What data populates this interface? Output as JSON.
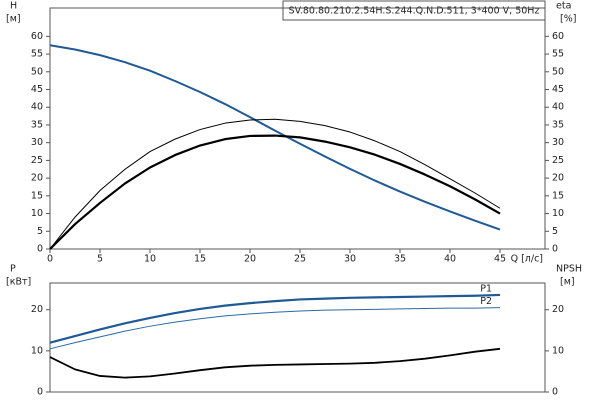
{
  "chart_data": [
    {
      "type": "line",
      "title": "SV.80.80.210.2.54H.S.244.Q.N.D.511, 3*400 V, 50Hz",
      "xlabel": "Q [л/с]",
      "ylabel": "H",
      "yunit": "[м]",
      "y2label": "eta",
      "y2unit": "[%]",
      "xlim": [
        0,
        49.5
      ],
      "xticks": [
        0,
        5,
        10,
        15,
        20,
        25,
        30,
        35,
        40,
        45
      ],
      "ylim": [
        0,
        68
      ],
      "yticks": [
        0,
        5,
        10,
        15,
        20,
        25,
        30,
        35,
        40,
        45,
        50,
        55,
        60
      ],
      "y2lim": [
        0,
        68
      ],
      "y2ticks": [
        0,
        5,
        10,
        15,
        20,
        25,
        30,
        35,
        40,
        45,
        50,
        55,
        60
      ],
      "grid": false,
      "x": [
        0,
        2.5,
        5,
        7.5,
        10,
        12.5,
        15,
        17.5,
        20,
        22.5,
        25,
        27.5,
        30,
        32.5,
        35,
        37.5,
        40,
        42.5,
        45
      ],
      "series": [
        {
          "color": "#1f5a96",
          "axis": "y",
          "values": [
            57.5,
            56.3,
            54.7,
            52.7,
            50.3,
            47.4,
            44.3,
            40.9,
            37.2,
            33.4,
            29.7,
            26.1,
            22.6,
            19.3,
            16.2,
            13.3,
            10.6,
            8,
            5.5
          ]
        },
        {
          "color": "#000000",
          "axis": "y2",
          "values": [
            0,
            9,
            16.5,
            22.5,
            27.5,
            31,
            33.7,
            35.5,
            36.4,
            36.6,
            36,
            34.8,
            33,
            30.5,
            27.5,
            23.8,
            19.8,
            15.8,
            11.5
          ]
        },
        {
          "color": "#000000",
          "axis": "y2",
          "values": [
            0,
            7,
            13,
            18.5,
            23,
            26.5,
            29.2,
            31,
            31.9,
            32,
            31.5,
            30.3,
            28.7,
            26.6,
            24,
            21,
            17.7,
            14,
            10
          ]
        }
      ]
    },
    {
      "type": "line",
      "ylabel": "P",
      "yunit": "[кВт]",
      "y2label": "NPSH",
      "y2unit": "[м]",
      "xlim": [
        0,
        49.5
      ],
      "ylim": [
        0,
        26.5
      ],
      "yticks": [
        0,
        10,
        20
      ],
      "y2lim": [
        0,
        26.5
      ],
      "y2ticks": [
        0,
        10,
        20
      ],
      "x": [
        0,
        2.5,
        5,
        7.5,
        10,
        12.5,
        15,
        17.5,
        20,
        22.5,
        25,
        27.5,
        30,
        32.5,
        35,
        37.5,
        40,
        42.5,
        45
      ],
      "series": [
        {
          "name": "P1",
          "color": "#1f5a96",
          "axis": "y",
          "values": [
            12,
            13.6,
            15.2,
            16.7,
            18,
            19.2,
            20.2,
            21,
            21.6,
            22.1,
            22.5,
            22.7,
            22.9,
            23,
            23.1,
            23.2,
            23.3,
            23.4,
            23.6
          ]
        },
        {
          "name": "P2",
          "color": "#2a6aa8",
          "axis": "y",
          "values": [
            10.5,
            12,
            13.4,
            14.8,
            16,
            17,
            17.8,
            18.5,
            19,
            19.4,
            19.7,
            19.9,
            20,
            20.1,
            20.2,
            20.3,
            20.4,
            20.4,
            20.5
          ]
        },
        {
          "color": "#000000",
          "axis": "y2",
          "values": [
            8.5,
            5.5,
            3.9,
            3.5,
            3.8,
            4.5,
            5.3,
            6,
            6.4,
            6.6,
            6.7,
            6.8,
            6.9,
            7.1,
            7.5,
            8.1,
            8.9,
            9.8,
            10.5
          ]
        }
      ]
    }
  ]
}
